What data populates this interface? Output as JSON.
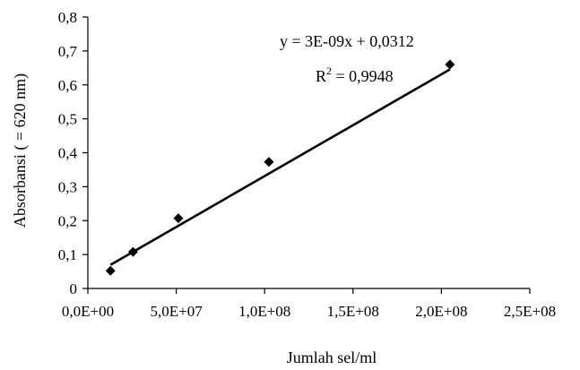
{
  "chart_data": {
    "type": "scatter",
    "xlabel": "Jumlah sel/ml",
    "ylabel": "Absorbansi (   = 620 nm)",
    "xlim": [
      0,
      250000000
    ],
    "ylim": [
      0,
      0.8
    ],
    "x_ticks": [
      0,
      50000000,
      100000000,
      150000000,
      200000000,
      250000000
    ],
    "x_tick_labels": [
      "0,0E+00",
      "5,0E+07",
      "1,0E+08",
      "1,5E+08",
      "2,0E+08",
      "2,5E+08"
    ],
    "y_ticks": [
      0,
      0.1,
      0.2,
      0.3,
      0.4,
      0.5,
      0.6,
      0.7,
      0.8
    ],
    "y_tick_labels": [
      "0",
      "0,1",
      "0,2",
      "0,3",
      "0,4",
      "0,5",
      "0,6",
      "0,7",
      "0,8"
    ],
    "grid": false,
    "legend": "none",
    "series": [
      {
        "marker": "diamond",
        "color": "#000000",
        "x": [
          12800000,
          25600000,
          51200000,
          102400000,
          204800000
        ],
        "y": [
          0.052,
          0.108,
          0.207,
          0.373,
          0.66
        ]
      }
    ],
    "trendline": {
      "slope": 3e-09,
      "intercept": 0.0312,
      "x_range": [
        12800000,
        204800000
      ],
      "color": "#000000",
      "equation_text": "y = 3E-09x + 0,0312",
      "r2_prefix": "R",
      "r2_sup": "2",
      "r2_suffix": " = 0,9948"
    }
  }
}
